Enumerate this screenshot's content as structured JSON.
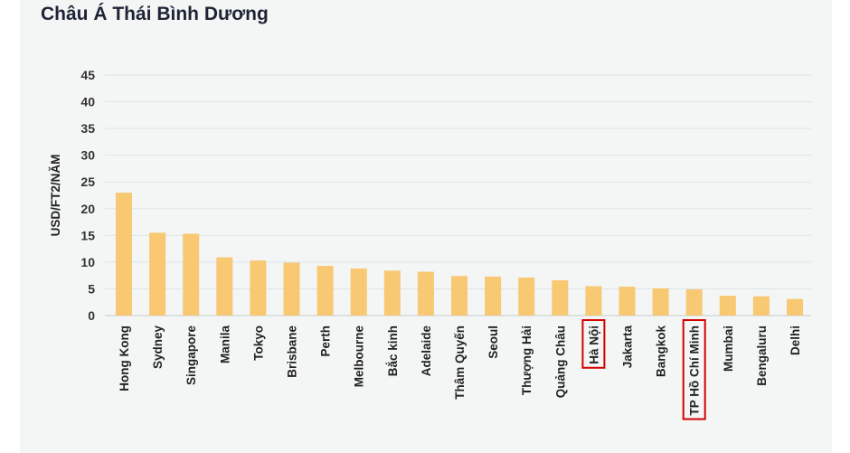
{
  "chart_data": {
    "type": "bar",
    "title": "Châu Á Thái Bình Dương",
    "ylabel": "USD/FT2/NĂM",
    "xlabel": "",
    "ylim": [
      0,
      45
    ],
    "yticks": [
      0,
      5,
      10,
      15,
      20,
      25,
      30,
      35,
      40,
      45
    ],
    "grid": true,
    "categories": [
      "Hong Kong",
      "Sydney",
      "Singapore",
      "Manila",
      "Tokyo",
      "Brisbane",
      "Perth",
      "Melbourne",
      "Bắc kinh",
      "Adelaide",
      "Thâm Quyến",
      "Seoul",
      "Thượng Hải",
      "Quảng Châu",
      "Hà Nội",
      "Jakarta",
      "Bangkok",
      "TP Hồ Chí Minh",
      "Mumbai",
      "Bengaluru",
      "Delhi"
    ],
    "values": [
      23.0,
      15.5,
      15.3,
      10.9,
      10.3,
      9.9,
      9.3,
      8.8,
      8.4,
      8.2,
      7.4,
      7.3,
      7.1,
      6.6,
      5.5,
      5.4,
      5.1,
      4.9,
      3.7,
      3.6,
      3.1
    ],
    "bar_color": "#f8c873",
    "highlighted": [
      "Hà Nội",
      "TP Hồ Chí Minh"
    ],
    "highlight_color": "#d40000"
  }
}
